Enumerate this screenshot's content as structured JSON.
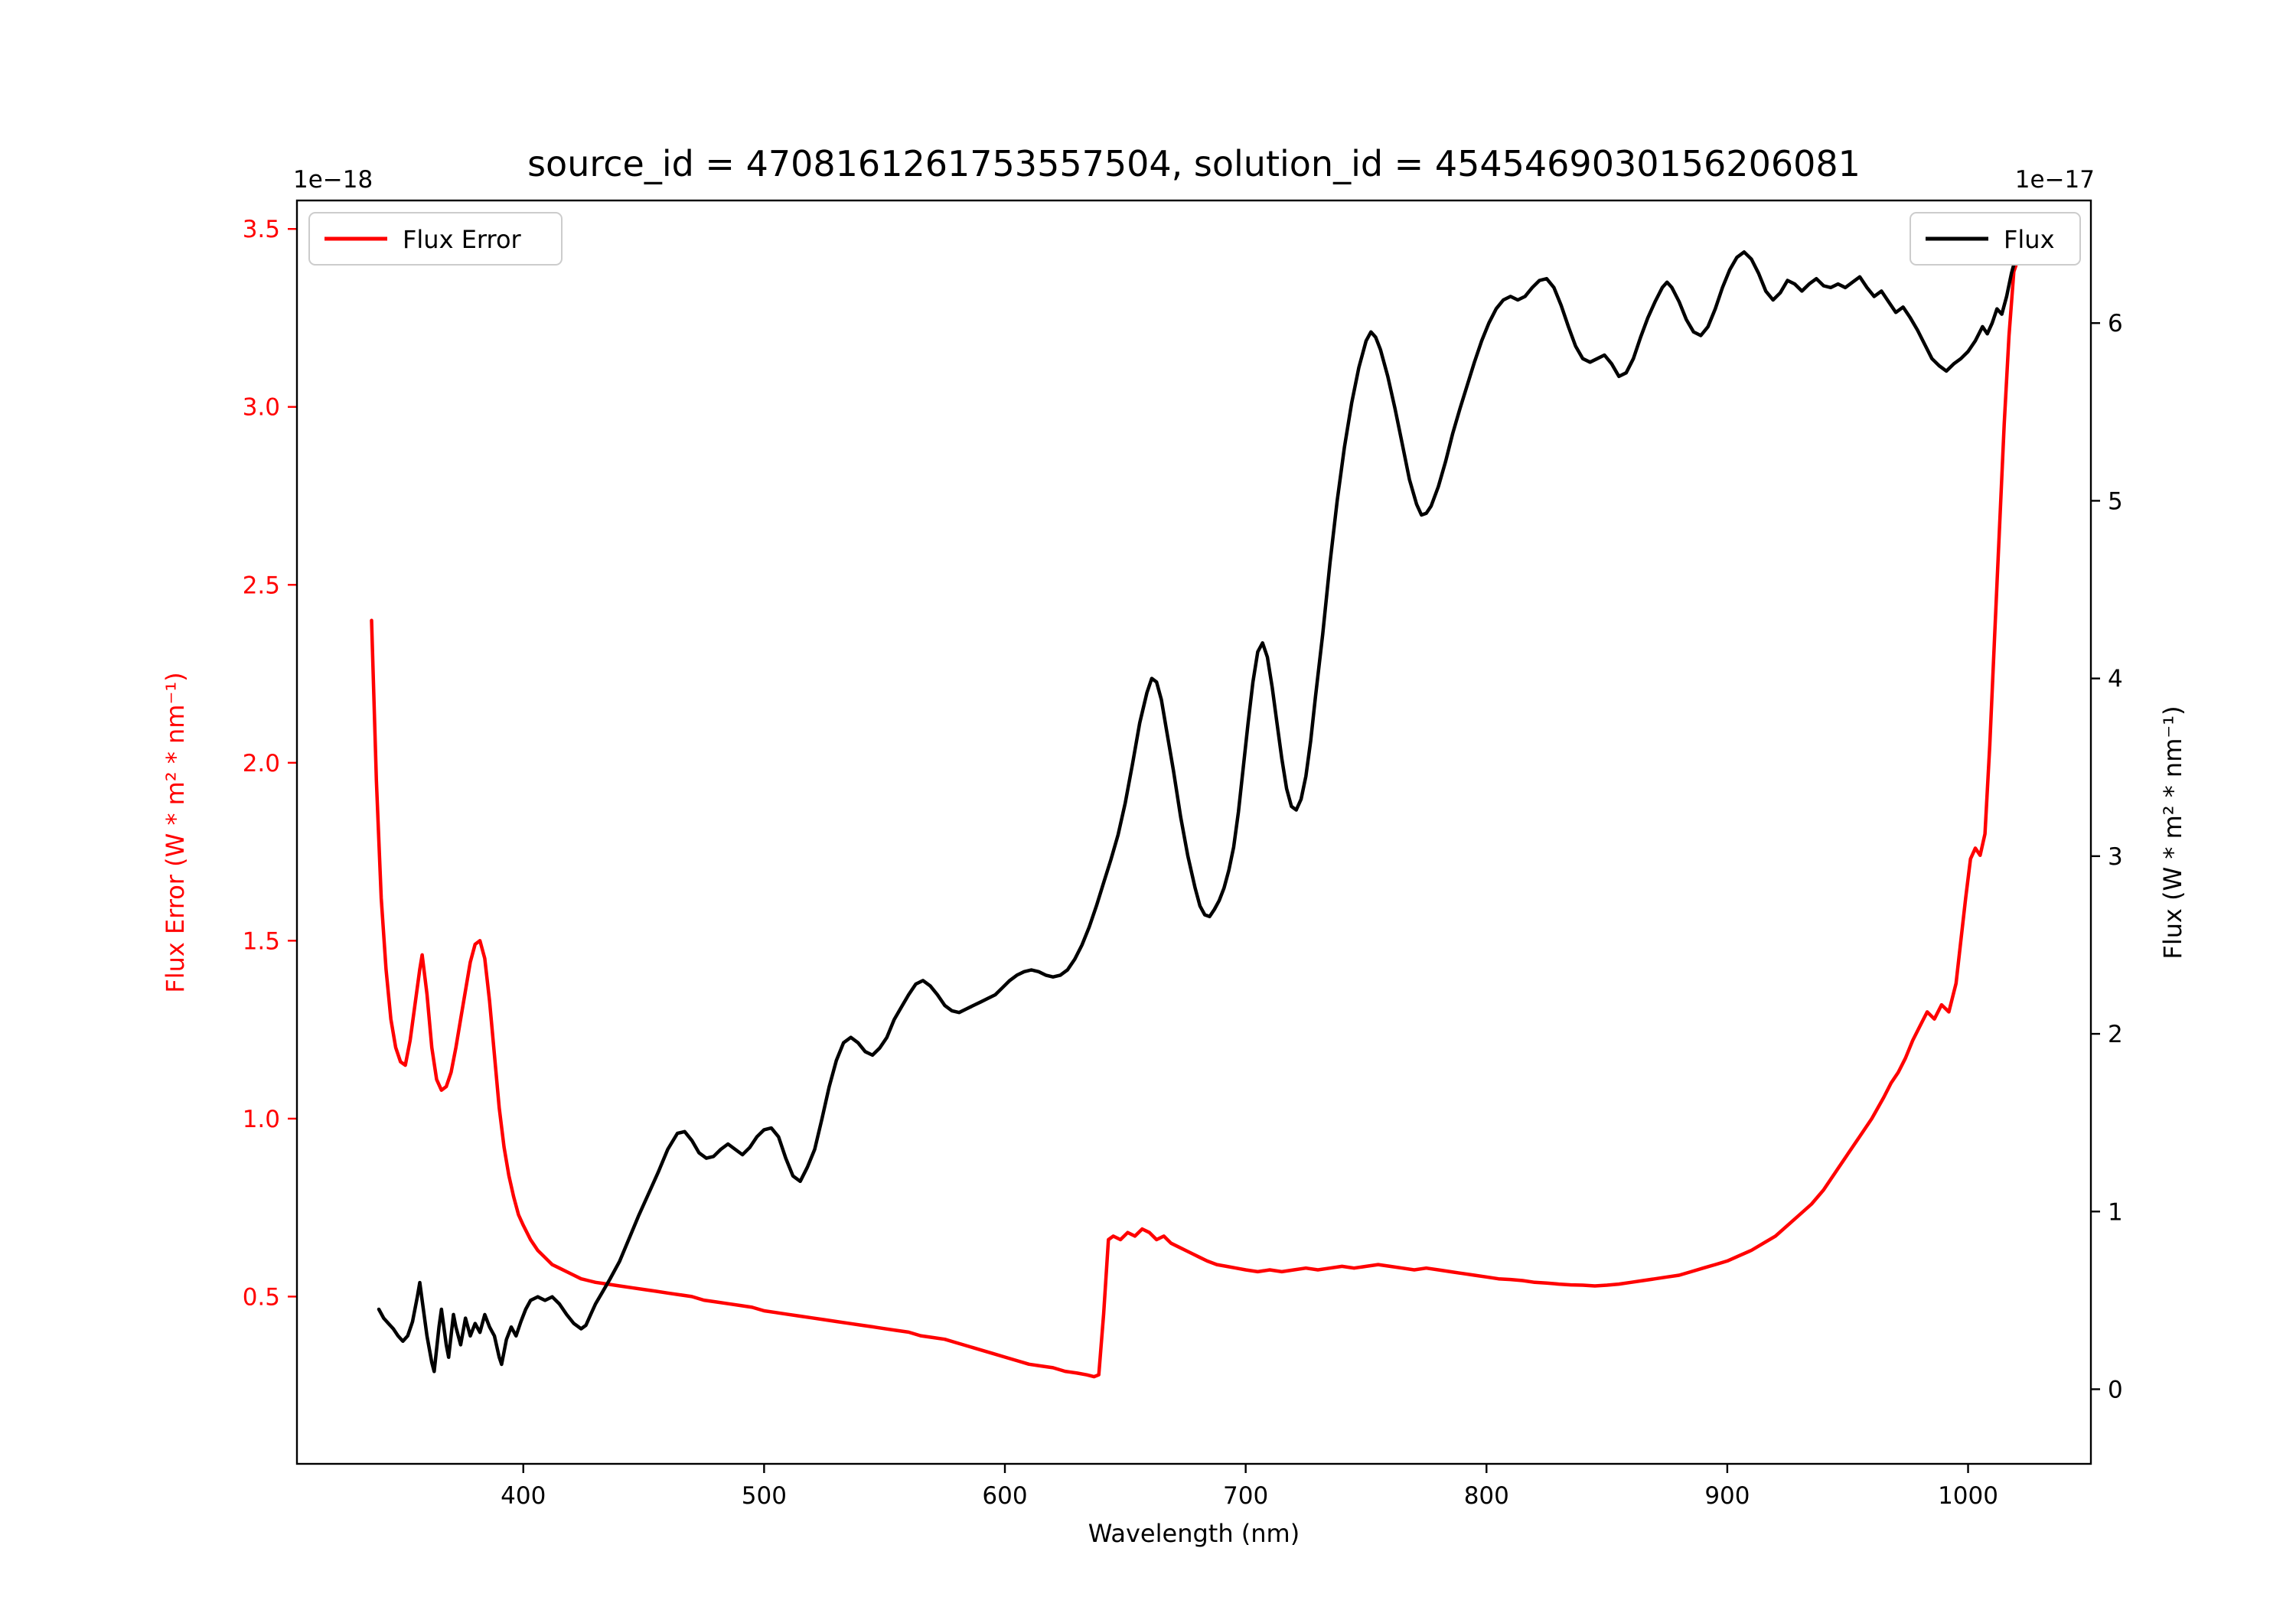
{
  "figure": {
    "title": "source_id = 4708161261753557504, solution_id = 4545469030156206081",
    "xlabel": "Wavelength (nm)",
    "left_offset_text": "1e−18",
    "right_offset_text": "1e−17"
  },
  "chart_data": {
    "type": "line",
    "title": "source_id = 4708161261753557504, solution_id = 4545469030156206081",
    "xlabel": "Wavelength (nm)",
    "xlim": [
      306,
      1051
    ],
    "grid": false,
    "x_ticks": [
      {
        "v": 400,
        "label": "400"
      },
      {
        "v": 500,
        "label": "500"
      },
      {
        "v": 600,
        "label": "600"
      },
      {
        "v": 700,
        "label": "700"
      },
      {
        "v": 800,
        "label": "800"
      },
      {
        "v": 900,
        "label": "900"
      },
      {
        "v": 1000,
        "label": "1000"
      }
    ],
    "left_axis": {
      "label": "Flux Error (W * m² * nm⁻¹)",
      "offset_text": "1e−18",
      "color": "#ff0000",
      "lim": [
        0.03,
        3.58
      ],
      "ticks": [
        {
          "v": 0.5,
          "label": "0.5"
        },
        {
          "v": 1.0,
          "label": "1.0"
        },
        {
          "v": 1.5,
          "label": "1.5"
        },
        {
          "v": 2.0,
          "label": "2.0"
        },
        {
          "v": 2.5,
          "label": "2.5"
        },
        {
          "v": 3.0,
          "label": "3.0"
        },
        {
          "v": 3.5,
          "label": "3.5"
        }
      ]
    },
    "right_axis": {
      "label": "Flux (W * m² * nm⁻¹)",
      "offset_text": "1e−17",
      "color": "#000000",
      "lim": [
        -0.42,
        6.69
      ],
      "ticks": [
        {
          "v": 0,
          "label": "0"
        },
        {
          "v": 1,
          "label": "1"
        },
        {
          "v": 2,
          "label": "2"
        },
        {
          "v": 3,
          "label": "3"
        },
        {
          "v": 4,
          "label": "4"
        },
        {
          "v": 5,
          "label": "5"
        },
        {
          "v": 6,
          "label": "6"
        }
      ]
    },
    "legends": [
      {
        "label": "Flux Error",
        "position": "upper-left",
        "color": "#ff0000"
      },
      {
        "label": "Flux",
        "position": "upper-right",
        "color": "#000000"
      }
    ],
    "series": [
      {
        "name": "Flux Error",
        "axis": "left",
        "color": "#ff0000",
        "units": "1e-18 W * m2 * nm-1",
        "x": [
          337,
          339,
          341,
          343,
          345,
          347,
          349,
          351,
          353,
          355,
          357,
          358,
          360,
          362,
          364,
          366,
          368,
          370,
          372,
          374,
          376,
          378,
          380,
          382,
          384,
          386,
          388,
          390,
          392,
          394,
          396,
          398,
          400,
          403,
          406,
          409,
          412,
          415,
          418,
          421,
          424,
          427,
          430,
          435,
          440,
          445,
          450,
          455,
          460,
          465,
          470,
          475,
          480,
          485,
          490,
          495,
          500,
          505,
          510,
          515,
          520,
          525,
          530,
          535,
          540,
          545,
          550,
          555,
          560,
          565,
          570,
          575,
          580,
          585,
          590,
          595,
          600,
          605,
          610,
          615,
          620,
          625,
          630,
          634,
          637,
          639,
          641,
          643,
          645,
          648,
          651,
          654,
          657,
          660,
          663,
          666,
          669,
          672,
          675,
          678,
          681,
          684,
          688,
          692,
          696,
          700,
          705,
          710,
          715,
          720,
          725,
          730,
          735,
          740,
          745,
          750,
          755,
          760,
          765,
          770,
          775,
          780,
          785,
          790,
          795,
          800,
          805,
          810,
          815,
          820,
          825,
          830,
          835,
          840,
          845,
          850,
          855,
          860,
          865,
          870,
          875,
          880,
          885,
          890,
          895,
          900,
          905,
          910,
          915,
          920,
          925,
          930,
          935,
          940,
          945,
          950,
          955,
          960,
          965,
          968,
          971,
          974,
          977,
          980,
          983,
          986,
          989,
          992,
          995,
          997,
          999,
          1001,
          1003,
          1005,
          1007,
          1009,
          1011,
          1013,
          1015,
          1017,
          1019,
          1021
        ],
        "y": [
          2.4,
          1.95,
          1.62,
          1.42,
          1.28,
          1.2,
          1.16,
          1.15,
          1.22,
          1.32,
          1.42,
          1.46,
          1.35,
          1.2,
          1.11,
          1.08,
          1.09,
          1.13,
          1.2,
          1.28,
          1.36,
          1.44,
          1.49,
          1.5,
          1.45,
          1.33,
          1.18,
          1.03,
          0.92,
          0.84,
          0.78,
          0.73,
          0.7,
          0.66,
          0.63,
          0.61,
          0.59,
          0.58,
          0.57,
          0.56,
          0.55,
          0.545,
          0.54,
          0.535,
          0.53,
          0.525,
          0.52,
          0.515,
          0.51,
          0.505,
          0.5,
          0.49,
          0.485,
          0.48,
          0.475,
          0.47,
          0.46,
          0.455,
          0.45,
          0.445,
          0.44,
          0.435,
          0.43,
          0.425,
          0.42,
          0.415,
          0.41,
          0.405,
          0.4,
          0.39,
          0.385,
          0.38,
          0.37,
          0.36,
          0.35,
          0.34,
          0.33,
          0.32,
          0.31,
          0.305,
          0.3,
          0.29,
          0.285,
          0.28,
          0.275,
          0.28,
          0.45,
          0.66,
          0.67,
          0.66,
          0.68,
          0.67,
          0.69,
          0.68,
          0.66,
          0.67,
          0.65,
          0.64,
          0.63,
          0.62,
          0.61,
          0.6,
          0.59,
          0.585,
          0.58,
          0.575,
          0.57,
          0.575,
          0.57,
          0.575,
          0.58,
          0.575,
          0.58,
          0.585,
          0.58,
          0.585,
          0.59,
          0.585,
          0.58,
          0.575,
          0.58,
          0.575,
          0.57,
          0.565,
          0.56,
          0.555,
          0.55,
          0.548,
          0.545,
          0.54,
          0.538,
          0.535,
          0.533,
          0.532,
          0.53,
          0.532,
          0.535,
          0.54,
          0.545,
          0.55,
          0.555,
          0.56,
          0.57,
          0.58,
          0.59,
          0.6,
          0.615,
          0.63,
          0.65,
          0.67,
          0.7,
          0.73,
          0.76,
          0.8,
          0.85,
          0.9,
          0.95,
          1.0,
          1.06,
          1.1,
          1.13,
          1.17,
          1.22,
          1.26,
          1.3,
          1.28,
          1.32,
          1.3,
          1.38,
          1.5,
          1.62,
          1.73,
          1.76,
          1.74,
          1.8,
          2.05,
          2.35,
          2.65,
          2.95,
          3.2,
          3.38,
          3.42
        ]
      },
      {
        "name": "Flux",
        "axis": "right",
        "color": "#000000",
        "units": "1e-17 W * m2 * nm-1",
        "x": [
          340,
          342,
          344,
          346,
          348,
          350,
          352,
          354,
          356,
          357,
          358,
          360,
          362,
          363,
          365,
          366,
          368,
          369,
          371,
          372,
          374,
          376,
          378,
          380,
          382,
          384,
          386,
          388,
          390,
          391,
          393,
          395,
          397,
          399,
          401,
          403,
          406,
          409,
          412,
          415,
          418,
          421,
          424,
          426,
          428,
          430,
          433,
          436,
          440,
          444,
          448,
          452,
          456,
          460,
          464,
          467,
          470,
          473,
          476,
          479,
          482,
          485,
          488,
          491,
          494,
          497,
          500,
          503,
          506,
          509,
          512,
          515,
          518,
          521,
          524,
          527,
          530,
          533,
          536,
          539,
          542,
          545,
          548,
          551,
          554,
          557,
          560,
          563,
          566,
          569,
          572,
          575,
          578,
          581,
          584,
          587,
          590,
          593,
          596,
          599,
          602,
          605,
          608,
          611,
          614,
          617,
          620,
          623,
          626,
          629,
          632,
          635,
          638,
          641,
          644,
          647,
          650,
          653,
          656,
          659,
          661,
          663,
          665,
          667,
          670,
          673,
          676,
          679,
          681,
          683,
          685,
          687,
          689,
          691,
          693,
          695,
          697,
          699,
          701,
          703,
          705,
          707,
          709,
          711,
          713,
          715,
          717,
          719,
          721,
          723,
          725,
          727,
          729,
          732,
          735,
          738,
          741,
          744,
          747,
          750,
          752,
          754,
          756,
          759,
          762,
          765,
          768,
          771,
          773,
          775,
          777,
          780,
          783,
          786,
          789,
          792,
          795,
          798,
          801,
          804,
          807,
          810,
          813,
          816,
          819,
          822,
          825,
          828,
          831,
          834,
          837,
          840,
          843,
          846,
          849,
          852,
          855,
          858,
          861,
          864,
          867,
          870,
          873,
          875,
          877,
          880,
          883,
          886,
          889,
          892,
          895,
          898,
          901,
          904,
          907,
          910,
          913,
          916,
          919,
          922,
          925,
          928,
          931,
          934,
          937,
          940,
          943,
          946,
          949,
          952,
          955,
          958,
          961,
          964,
          967,
          970,
          973,
          976,
          979,
          982,
          985,
          988,
          991,
          994,
          997,
          1000,
          1003,
          1006,
          1008,
          1010,
          1012,
          1014,
          1016,
          1018,
          1020
        ],
        "y": [
          0.45,
          0.4,
          0.37,
          0.34,
          0.3,
          0.27,
          0.3,
          0.38,
          0.52,
          0.6,
          0.5,
          0.3,
          0.15,
          0.1,
          0.35,
          0.45,
          0.25,
          0.18,
          0.42,
          0.35,
          0.25,
          0.4,
          0.3,
          0.37,
          0.32,
          0.42,
          0.35,
          0.3,
          0.18,
          0.14,
          0.28,
          0.35,
          0.3,
          0.38,
          0.45,
          0.5,
          0.52,
          0.5,
          0.52,
          0.48,
          0.42,
          0.37,
          0.34,
          0.36,
          0.42,
          0.48,
          0.55,
          0.62,
          0.72,
          0.85,
          0.98,
          1.1,
          1.22,
          1.35,
          1.44,
          1.45,
          1.4,
          1.33,
          1.3,
          1.31,
          1.35,
          1.38,
          1.35,
          1.32,
          1.36,
          1.42,
          1.46,
          1.47,
          1.42,
          1.3,
          1.2,
          1.17,
          1.25,
          1.35,
          1.52,
          1.7,
          1.85,
          1.95,
          1.98,
          1.95,
          1.9,
          1.88,
          1.92,
          1.98,
          2.08,
          2.15,
          2.22,
          2.28,
          2.3,
          2.27,
          2.22,
          2.16,
          2.13,
          2.12,
          2.14,
          2.16,
          2.18,
          2.2,
          2.22,
          2.26,
          2.3,
          2.33,
          2.35,
          2.36,
          2.35,
          2.33,
          2.32,
          2.33,
          2.36,
          2.42,
          2.5,
          2.6,
          2.72,
          2.85,
          2.98,
          3.12,
          3.3,
          3.52,
          3.75,
          3.92,
          4.0,
          3.98,
          3.88,
          3.72,
          3.48,
          3.22,
          3.0,
          2.82,
          2.72,
          2.67,
          2.66,
          2.7,
          2.75,
          2.82,
          2.92,
          3.05,
          3.25,
          3.5,
          3.75,
          3.98,
          4.15,
          4.2,
          4.12,
          3.95,
          3.75,
          3.55,
          3.38,
          3.28,
          3.26,
          3.32,
          3.45,
          3.65,
          3.9,
          4.25,
          4.65,
          5.0,
          5.3,
          5.55,
          5.75,
          5.9,
          5.95,
          5.92,
          5.85,
          5.7,
          5.52,
          5.32,
          5.12,
          4.98,
          4.92,
          4.93,
          4.97,
          5.08,
          5.22,
          5.38,
          5.52,
          5.65,
          5.78,
          5.9,
          6.0,
          6.08,
          6.13,
          6.15,
          6.13,
          6.15,
          6.2,
          6.24,
          6.25,
          6.2,
          6.1,
          5.98,
          5.87,
          5.8,
          5.78,
          5.8,
          5.82,
          5.77,
          5.7,
          5.72,
          5.8,
          5.92,
          6.03,
          6.12,
          6.2,
          6.23,
          6.2,
          6.12,
          6.02,
          5.95,
          5.93,
          5.98,
          6.08,
          6.2,
          6.3,
          6.37,
          6.4,
          6.36,
          6.28,
          6.18,
          6.13,
          6.17,
          6.24,
          6.22,
          6.18,
          6.22,
          6.25,
          6.21,
          6.2,
          6.22,
          6.2,
          6.23,
          6.26,
          6.2,
          6.15,
          6.18,
          6.12,
          6.06,
          6.09,
          6.03,
          5.96,
          5.88,
          5.8,
          5.76,
          5.73,
          5.77,
          5.8,
          5.84,
          5.9,
          5.98,
          5.94,
          6.0,
          6.08,
          6.05,
          6.15,
          6.28,
          6.38
        ]
      }
    ]
  }
}
